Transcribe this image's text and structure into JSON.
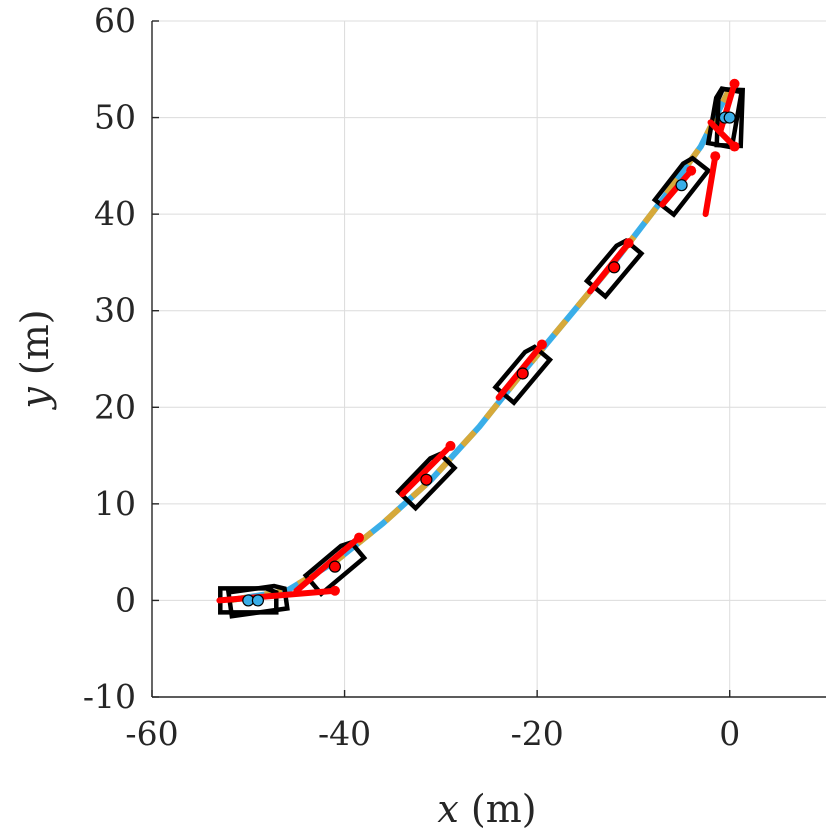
{
  "chart_data": {
    "type": "line",
    "title": "",
    "xlabel": {
      "var": "x",
      "unit": "(m)"
    },
    "ylabel": {
      "var": "y",
      "unit": "(m)"
    },
    "xlim": [
      -60,
      10
    ],
    "ylim": [
      -10,
      60
    ],
    "xticks": [
      -60,
      -40,
      -20,
      0
    ],
    "yticks": [
      -10,
      0,
      10,
      20,
      30,
      40,
      50,
      60
    ],
    "xtick_labels": [
      "-60",
      "-40",
      "-20",
      "0"
    ],
    "ytick_labels": [
      "-10",
      "0",
      "10",
      "20",
      "30",
      "40",
      "50",
      "60"
    ],
    "grid": true,
    "colors": {
      "path_blue": "#3aaee8",
      "path_gold": "#d6a93a",
      "predicted": "#ff0000",
      "vehicle_outline": "#000000",
      "axis": "#262626",
      "grid": "#dcdcdc"
    },
    "series": [
      {
        "style": "dashed-two-color",
        "x": [
          -52,
          -46,
          -41,
          -36,
          -31,
          -26,
          -22,
          -17,
          -12,
          -7,
          -3,
          0
        ],
        "y": [
          0,
          1,
          4,
          8,
          12.5,
          18,
          23,
          29,
          35,
          41.5,
          47,
          53
        ]
      },
      {
        "style": "predicted",
        "segments": [
          {
            "x": [
              -53,
              -41
            ],
            "y": [
              0,
              1
            ]
          },
          {
            "x": [
              -45,
              -38.5
            ],
            "y": [
              1,
              6.5
            ]
          },
          {
            "x": [
              -34,
              -29
            ],
            "y": [
              11,
              16
            ]
          },
          {
            "x": [
              -24,
              -19.5
            ],
            "y": [
              21,
              26.5
            ]
          },
          {
            "x": [
              -14.5,
              -10.5
            ],
            "y": [
              32,
              37
            ]
          },
          {
            "x": [
              -7,
              -4
            ],
            "y": [
              41,
              44.5
            ]
          },
          {
            "x": [
              -2.5,
              -1.5
            ],
            "y": [
              40,
              46
            ]
          },
          {
            "x": [
              -2,
              0.5
            ],
            "y": [
              49.5,
              47
            ]
          },
          {
            "x": [
              -1,
              0.5
            ],
            "y": [
              48.5,
              53.5
            ]
          }
        ]
      }
    ],
    "vehicle_markers": [
      {
        "x": -50,
        "y": 0,
        "heading_deg": 0
      },
      {
        "x": -49,
        "y": 0,
        "heading_deg": 8
      },
      {
        "x": -41,
        "y": 3.5,
        "heading_deg": 40
      },
      {
        "x": -31.5,
        "y": 12.5,
        "heading_deg": 46
      },
      {
        "x": -21.5,
        "y": 23.5,
        "heading_deg": 50
      },
      {
        "x": -12,
        "y": 34.5,
        "heading_deg": 50
      },
      {
        "x": -5,
        "y": 43,
        "heading_deg": 52
      },
      {
        "x": -0.5,
        "y": 50,
        "heading_deg": 80
      },
      {
        "x": 0,
        "y": 50,
        "heading_deg": 88
      }
    ]
  }
}
